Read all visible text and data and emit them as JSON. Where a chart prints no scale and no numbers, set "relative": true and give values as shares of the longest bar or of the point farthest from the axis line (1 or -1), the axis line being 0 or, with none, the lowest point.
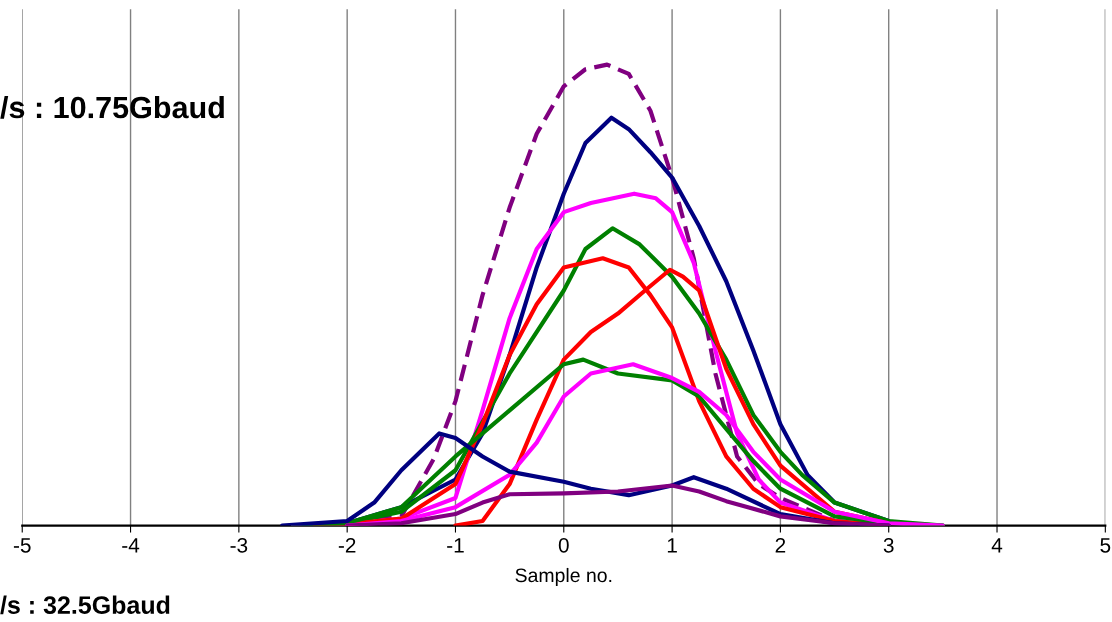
{
  "chart_data": {
    "type": "line",
    "relative": true,
    "xlabel": "Sample no.",
    "xlim": [
      -5,
      5
    ],
    "xticks": [
      -5,
      -4,
      -3,
      -2,
      -1,
      0,
      1,
      2,
      3,
      4,
      5
    ],
    "grid": "x",
    "legend": false,
    "marker": "none",
    "line_style": "solid",
    "annotations": [
      "/s : 10.75Gbaud",
      "/s : 32.5Gbaud"
    ],
    "series": [
      {
        "color": "#800080",
        "line_style": "dashed",
        "x": [
          -2.2,
          -2,
          -1.5,
          -1.2,
          -1,
          -0.75,
          -0.5,
          -0.25,
          0,
          0.2,
          0.4,
          0.6,
          0.8,
          1.0,
          1.2,
          1.4,
          1.6,
          1.8,
          2,
          2.5,
          3
        ],
        "values": [
          0,
          0.005,
          0.02,
          0.145,
          0.27,
          0.5,
          0.69,
          0.85,
          0.953,
          0.99,
          1.0,
          0.98,
          0.9,
          0.755,
          0.58,
          0.33,
          0.15,
          0.09,
          0.06,
          0.01,
          0
        ]
      },
      {
        "color": "#000080",
        "x": [
          -2.5,
          -2,
          -1.5,
          -1,
          -0.75,
          -0.5,
          -0.25,
          0,
          0.2,
          0.44,
          0.6,
          0.8,
          1,
          1.25,
          1.5,
          1.75,
          2,
          2.25,
          2.5,
          3
        ],
        "values": [
          0,
          0.005,
          0.04,
          0.1,
          0.2,
          0.37,
          0.56,
          0.72,
          0.83,
          0.885,
          0.86,
          0.81,
          0.755,
          0.65,
          0.53,
          0.38,
          0.22,
          0.11,
          0.05,
          0.01
        ]
      },
      {
        "color": "#ff00ff",
        "x": [
          -2.5,
          -2,
          -1.5,
          -1,
          -0.75,
          -0.5,
          -0.25,
          0,
          0.25,
          0.65,
          0.85,
          1,
          1.2,
          1.4,
          1.6,
          1.8,
          2,
          2.5,
          3
        ],
        "values": [
          0,
          0.003,
          0.015,
          0.06,
          0.25,
          0.45,
          0.6,
          0.68,
          0.7,
          0.72,
          0.71,
          0.68,
          0.57,
          0.38,
          0.2,
          0.1,
          0.05,
          0.01,
          0
        ]
      },
      {
        "color": "#008000",
        "x": [
          -2.5,
          -2,
          -1.5,
          -1,
          -0.5,
          0,
          0.2,
          0.45,
          0.7,
          1,
          1.25,
          1.5,
          1.75,
          2,
          2.2,
          2.5,
          3,
          3.5
        ],
        "values": [
          0,
          0.005,
          0.03,
          0.12,
          0.33,
          0.51,
          0.6,
          0.645,
          0.61,
          0.54,
          0.46,
          0.36,
          0.24,
          0.16,
          0.11,
          0.05,
          0.01,
          0
        ]
      },
      {
        "color": "#ff0000",
        "x": [
          -2.3,
          -2,
          -1.5,
          -1,
          -0.75,
          -0.5,
          -0.25,
          0,
          0.36,
          0.6,
          0.8,
          1,
          1.25,
          1.5,
          1.75,
          2,
          2.5,
          3
        ],
        "values": [
          0,
          0.003,
          0.015,
          0.09,
          0.22,
          0.37,
          0.48,
          0.56,
          0.58,
          0.56,
          0.5,
          0.43,
          0.27,
          0.15,
          0.08,
          0.04,
          0.01,
          0
        ]
      },
      {
        "color": "#ff0000",
        "x": [
          -1,
          -0.75,
          -0.5,
          -0.25,
          0,
          0.25,
          0.5,
          0.75,
          0.98,
          1.1,
          1.25,
          1.5,
          1.75,
          2,
          2.5,
          3
        ],
        "values": [
          0,
          0.01,
          0.09,
          0.23,
          0.36,
          0.42,
          0.46,
          0.51,
          0.555,
          0.54,
          0.51,
          0.34,
          0.22,
          0.13,
          0.03,
          0.005
        ]
      },
      {
        "color": "#008000",
        "x": [
          -2.4,
          -2,
          -1.5,
          -1,
          -0.5,
          0,
          0.18,
          0.5,
          1,
          1.25,
          1.5,
          1.75,
          2,
          2.5,
          3,
          3.5
        ],
        "values": [
          0,
          0.005,
          0.04,
          0.15,
          0.25,
          0.35,
          0.36,
          0.33,
          0.315,
          0.28,
          0.21,
          0.14,
          0.08,
          0.02,
          0.005,
          0
        ]
      },
      {
        "color": "#ff00ff",
        "x": [
          -2,
          -1.5,
          -1,
          -0.5,
          -0.25,
          0,
          0.25,
          0.64,
          1,
          1.25,
          1.5,
          1.75,
          2,
          2.5,
          3,
          3.5
        ],
        "values": [
          0,
          0.01,
          0.04,
          0.11,
          0.18,
          0.28,
          0.33,
          0.35,
          0.32,
          0.29,
          0.24,
          0.16,
          0.1,
          0.03,
          0.005,
          0
        ]
      },
      {
        "color": "#000080",
        "x": [
          -2.6,
          -2,
          -1.75,
          -1.5,
          -1.15,
          -1,
          -0.75,
          -0.5,
          0,
          0.25,
          0.6,
          1,
          1.2,
          1.5,
          2,
          2.5,
          3
        ],
        "values": [
          0,
          0.01,
          0.05,
          0.12,
          0.2,
          0.19,
          0.15,
          0.117,
          0.095,
          0.08,
          0.066,
          0.087,
          0.105,
          0.08,
          0.025,
          0.005,
          0
        ]
      },
      {
        "color": "#800080",
        "x": [
          -2,
          -1.5,
          -1,
          -0.75,
          -0.5,
          0,
          0.5,
          1,
          1.25,
          1.5,
          2,
          2.5,
          3
        ],
        "values": [
          0,
          0.005,
          0.025,
          0.05,
          0.068,
          0.07,
          0.074,
          0.087,
          0.074,
          0.053,
          0.02,
          0.005,
          0
        ]
      }
    ]
  }
}
